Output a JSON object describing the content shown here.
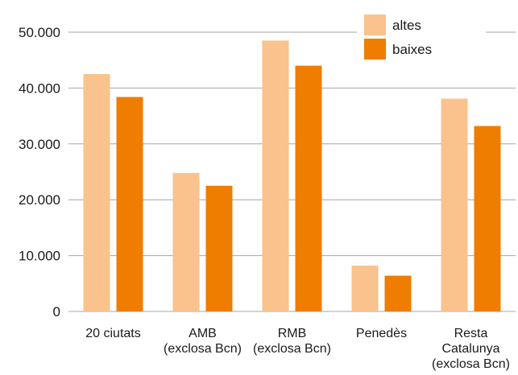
{
  "chart_data": {
    "type": "bar",
    "categories": [
      [
        "20 ciutats"
      ],
      [
        "AMB",
        "(exclosa Bcn)"
      ],
      [
        "RMB",
        "(exclosa Bcn)"
      ],
      [
        "Penedès"
      ],
      [
        "Resta",
        "Catalunya",
        "(exclosa Bcn)"
      ]
    ],
    "series": [
      {
        "name": "altes",
        "color": "#fac28c",
        "values": [
          42500,
          24800,
          48500,
          8200,
          38100
        ]
      },
      {
        "name": "baixes",
        "color": "#ee7d00",
        "values": [
          38400,
          22500,
          44000,
          6400,
          33200
        ]
      }
    ],
    "ylim": [
      0,
      50000
    ],
    "yticks": [
      0,
      10000,
      20000,
      30000,
      40000,
      50000
    ],
    "ytick_labels": [
      "0",
      "10.000",
      "20.000",
      "30.000",
      "40.000",
      "50.000"
    ],
    "grid": true,
    "legend_position": "top-right",
    "gridline_color": "#a6a6a6",
    "title": "",
    "xlabel": "",
    "ylabel": ""
  }
}
